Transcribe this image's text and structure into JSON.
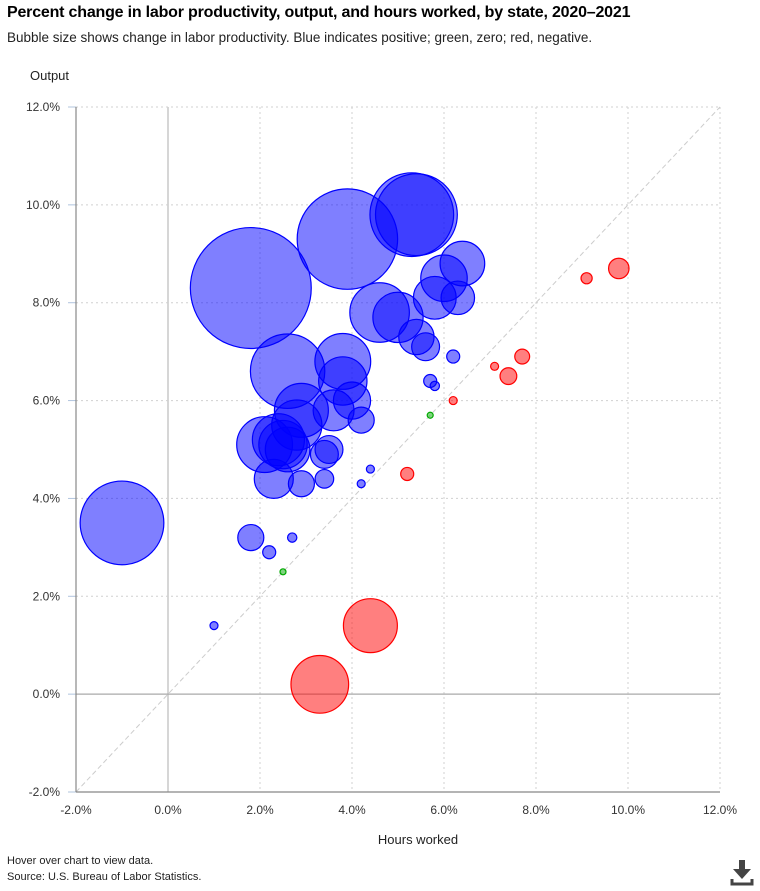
{
  "header": {
    "title": "Percent change in labor productivity, output, and hours worked, by state, 2020–2021",
    "subtitle": "Bubble size shows change in labor productivity. Blue indicates positive; green, zero; red, negative."
  },
  "footer": {
    "hint": "Hover over chart to view data.",
    "source": "Source: U.S. Bureau of Labor Statistics."
  },
  "icons": {
    "download": "download-icon"
  },
  "colors": {
    "positive": "#0000ff",
    "zero": "#00aa00",
    "negative": "#ff0000"
  },
  "chart_data": {
    "type": "scatter",
    "subtype": "bubble",
    "title": "Percent change in labor productivity, output, and hours worked, by state, 2020–2021",
    "xlabel": "Hours worked",
    "ylabel": "Output",
    "xlim": [
      -2,
      12
    ],
    "ylim": [
      -2,
      12
    ],
    "x_ticks": [
      "-2.0%",
      "0.0%",
      "2.0%",
      "4.0%",
      "6.0%",
      "8.0%",
      "10.0%",
      "12.0%"
    ],
    "y_ticks": [
      "-2.0%",
      "0.0%",
      "2.0%",
      "4.0%",
      "6.0%",
      "8.0%",
      "10.0%",
      "12.0%"
    ],
    "grid": true,
    "reference_line": "y = x (diagonal)",
    "legend": "none",
    "size_variable": "Change in labor productivity",
    "points": [
      {
        "hours": -1.0,
        "output": 3.5,
        "productivity": 4.5
      },
      {
        "hours": 1.0,
        "output": 1.4,
        "productivity": 0.4
      },
      {
        "hours": 1.8,
        "output": 3.2,
        "productivity": 1.4
      },
      {
        "hours": 2.2,
        "output": 2.9,
        "productivity": 0.7
      },
      {
        "hours": 2.7,
        "output": 3.2,
        "productivity": 0.5
      },
      {
        "hours": 2.5,
        "output": 2.5,
        "productivity": 0.0
      },
      {
        "hours": 1.8,
        "output": 8.3,
        "productivity": 6.5
      },
      {
        "hours": 3.9,
        "output": 9.3,
        "productivity": 5.4
      },
      {
        "hours": 5.3,
        "output": 9.8,
        "productivity": 4.5
      },
      {
        "hours": 5.4,
        "output": 9.8,
        "productivity": 4.4
      },
      {
        "hours": 6.4,
        "output": 8.8,
        "productivity": 2.4
      },
      {
        "hours": 6.0,
        "output": 8.5,
        "productivity": 2.5
      },
      {
        "hours": 5.8,
        "output": 8.1,
        "productivity": 2.3
      },
      {
        "hours": 6.3,
        "output": 8.1,
        "productivity": 1.8
      },
      {
        "hours": 4.6,
        "output": 7.8,
        "productivity": 3.2
      },
      {
        "hours": 5.0,
        "output": 7.7,
        "productivity": 2.7
      },
      {
        "hours": 5.4,
        "output": 7.3,
        "productivity": 1.9
      },
      {
        "hours": 5.6,
        "output": 7.1,
        "productivity": 1.5
      },
      {
        "hours": 6.2,
        "output": 6.9,
        "productivity": 0.7
      },
      {
        "hours": 2.6,
        "output": 6.6,
        "productivity": 4.0
      },
      {
        "hours": 3.8,
        "output": 6.8,
        "productivity": 3.0
      },
      {
        "hours": 3.8,
        "output": 6.4,
        "productivity": 2.6
      },
      {
        "hours": 4.0,
        "output": 6.0,
        "productivity": 2.0
      },
      {
        "hours": 3.6,
        "output": 5.8,
        "productivity": 2.2
      },
      {
        "hours": 4.2,
        "output": 5.6,
        "productivity": 1.4
      },
      {
        "hours": 2.9,
        "output": 5.8,
        "productivity": 2.9
      },
      {
        "hours": 2.8,
        "output": 5.5,
        "productivity": 2.7
      },
      {
        "hours": 2.1,
        "output": 5.1,
        "productivity": 3.0
      },
      {
        "hours": 2.4,
        "output": 5.2,
        "productivity": 2.8
      },
      {
        "hours": 2.5,
        "output": 5.1,
        "productivity": 2.6
      },
      {
        "hours": 2.6,
        "output": 5.0,
        "productivity": 2.4
      },
      {
        "hours": 2.3,
        "output": 4.4,
        "productivity": 2.1
      },
      {
        "hours": 2.9,
        "output": 4.3,
        "productivity": 1.4
      },
      {
        "hours": 3.4,
        "output": 4.9,
        "productivity": 1.5
      },
      {
        "hours": 3.5,
        "output": 5.0,
        "productivity": 1.5
      },
      {
        "hours": 3.4,
        "output": 4.4,
        "productivity": 1.0
      },
      {
        "hours": 4.4,
        "output": 4.6,
        "productivity": 0.2
      },
      {
        "hours": 4.2,
        "output": 4.3,
        "productivity": 0.1
      },
      {
        "hours": 5.7,
        "output": 6.4,
        "productivity": 0.7
      },
      {
        "hours": 5.8,
        "output": 6.3,
        "productivity": 0.5
      },
      {
        "hours": 5.7,
        "output": 5.7,
        "productivity": 0.0
      },
      {
        "hours": 6.2,
        "output": 6.0,
        "productivity": -0.2
      },
      {
        "hours": 5.2,
        "output": 4.5,
        "productivity": -0.7
      },
      {
        "hours": 7.1,
        "output": 6.7,
        "productivity": -0.4
      },
      {
        "hours": 7.4,
        "output": 6.5,
        "productivity": -0.9
      },
      {
        "hours": 7.7,
        "output": 6.9,
        "productivity": -0.8
      },
      {
        "hours": 9.1,
        "output": 8.5,
        "productivity": -0.6
      },
      {
        "hours": 9.8,
        "output": 8.7,
        "productivity": -1.1
      },
      {
        "hours": 4.4,
        "output": 1.4,
        "productivity": -2.9
      },
      {
        "hours": 3.3,
        "output": 0.2,
        "productivity": -3.1
      }
    ]
  }
}
